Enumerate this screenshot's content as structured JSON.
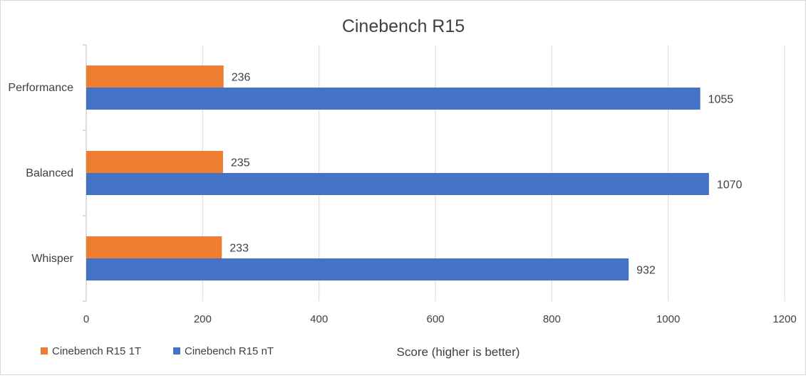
{
  "chart_data": {
    "type": "bar",
    "orientation": "horizontal",
    "title": "Cinebench R15",
    "xlabel": "Score (higher is better)",
    "ylabel": "",
    "xlim": [
      0,
      1200
    ],
    "x_ticks": [
      "0",
      "200",
      "400",
      "600",
      "800",
      "1000",
      "1200"
    ],
    "categories": [
      "Performance",
      "Balanced",
      "Whisper"
    ],
    "series": [
      {
        "name": "Cinebench R15 1T",
        "color": "#ED7D31",
        "values": [
          236,
          235,
          233
        ]
      },
      {
        "name": "Cinebench R15 nT",
        "color": "#4472C4",
        "values": [
          1055,
          1070,
          932
        ]
      }
    ],
    "grid": true,
    "legend_position": "bottom-left",
    "data_labels": true
  }
}
